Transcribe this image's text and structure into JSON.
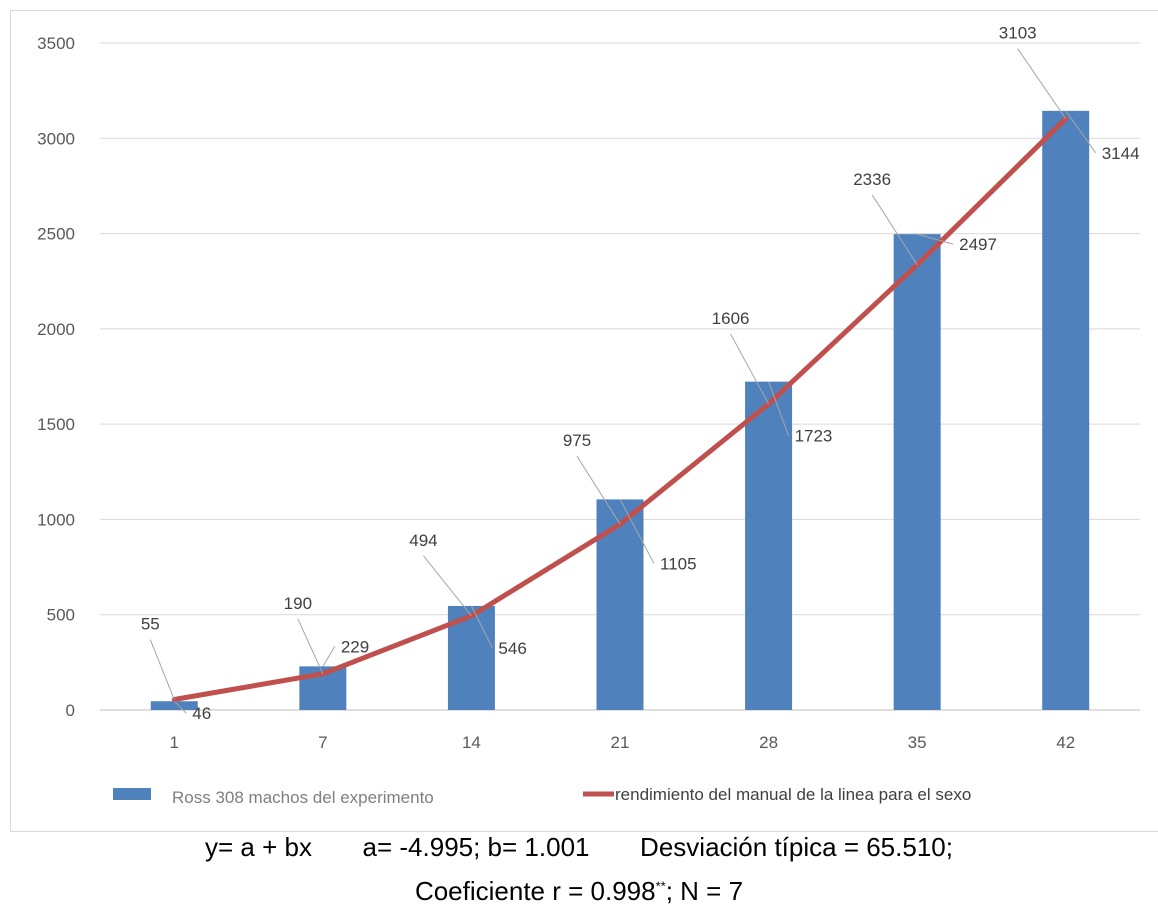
{
  "chart_data": {
    "type": "bar",
    "categories": [
      "1",
      "7",
      "14",
      "21",
      "28",
      "35",
      "42"
    ],
    "series": [
      {
        "name": "Ross 308 machos del experimento",
        "kind": "bar",
        "color": "#4f81bd",
        "values": [
          46,
          229,
          546,
          1105,
          1723,
          2497,
          3144
        ]
      },
      {
        "name": "rendimiento del manual de la linea para el sexo",
        "kind": "line",
        "color": "#c0504d",
        "values": [
          55,
          190,
          494,
          975,
          1606,
          2336,
          3103
        ]
      }
    ],
    "y_ticks": [
      "0",
      "500",
      "1000",
      "1500",
      "2000",
      "2500",
      "3000",
      "3500"
    ],
    "ylim": [
      0,
      3500
    ],
    "grid": true,
    "legend_position": "bottom"
  },
  "stats": {
    "line1": "y= a + bx       a= -4.995; b= 1.001       Desviación típica = 65.510;",
    "line2_prefix": "Coeficiente r = 0.998",
    "line2_sup": "**",
    "line2_suffix": "; N = 7"
  }
}
